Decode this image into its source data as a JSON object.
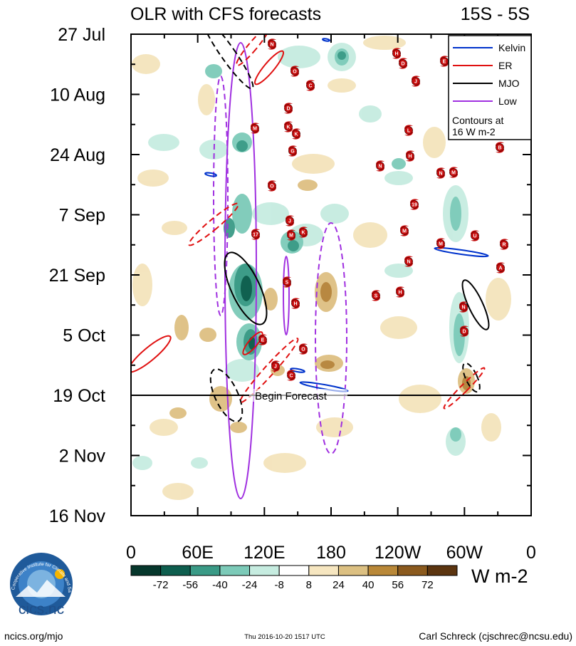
{
  "chart_data": {
    "type": "heatmap",
    "title": "OLR with CFS forecasts",
    "region": "15S - 5S",
    "y_tick_labels": [
      "27 Jul",
      "10 Aug",
      "24 Aug",
      "7 Sep",
      "21 Sep",
      "5 Oct",
      "19 Oct",
      "2 Nov",
      "16 Nov"
    ],
    "x_tick_labels": [
      "0",
      "60E",
      "120E",
      "180",
      "120W",
      "60W",
      "0"
    ],
    "x_range": [
      0,
      360
    ],
    "forecast_label": "Begin Forecast",
    "legend": [
      {
        "name": "Kelvin",
        "color": "#0033cc"
      },
      {
        "name": "ER",
        "color": "#e01010"
      },
      {
        "name": "MJO",
        "color": "#000000"
      },
      {
        "name": "Low",
        "color": "#a030e0"
      }
    ],
    "contour_note": [
      "Contours at",
      "16 W m-2"
    ],
    "colorbar": {
      "values": [
        "-72",
        "-56",
        "-40",
        "-24",
        "-8",
        "8",
        "24",
        "40",
        "56",
        "72"
      ],
      "colors": [
        "#06372c",
        "#0e5e4e",
        "#3a9a86",
        "#7ccab8",
        "#c6ece0",
        "#ffffff",
        "#f6e6c0",
        "#dcc082",
        "#b98838",
        "#8b5a1e",
        "#5c3510"
      ],
      "units": "W m-2"
    },
    "storm_labels": [
      "N",
      "H",
      "D",
      "E",
      "O",
      "J",
      "C",
      "D",
      "M",
      "K",
      "K",
      "L",
      "G",
      "H",
      "B",
      "N",
      "M",
      "N",
      "O",
      "19",
      "M",
      "17",
      "J",
      "K",
      "M",
      "U",
      "R",
      "M",
      "N",
      "A",
      "S",
      "S",
      "H"
    ]
  },
  "footer": {
    "logo_text": "cics.nc",
    "logo_ring": "Cooperative Institute for Climate and Satellites",
    "url": "ncics.org/mjo",
    "timestamp": "Thu 2016-10-20 1517 UTC",
    "author": "Carl Schreck (cjschrec@ncsu.edu)"
  }
}
